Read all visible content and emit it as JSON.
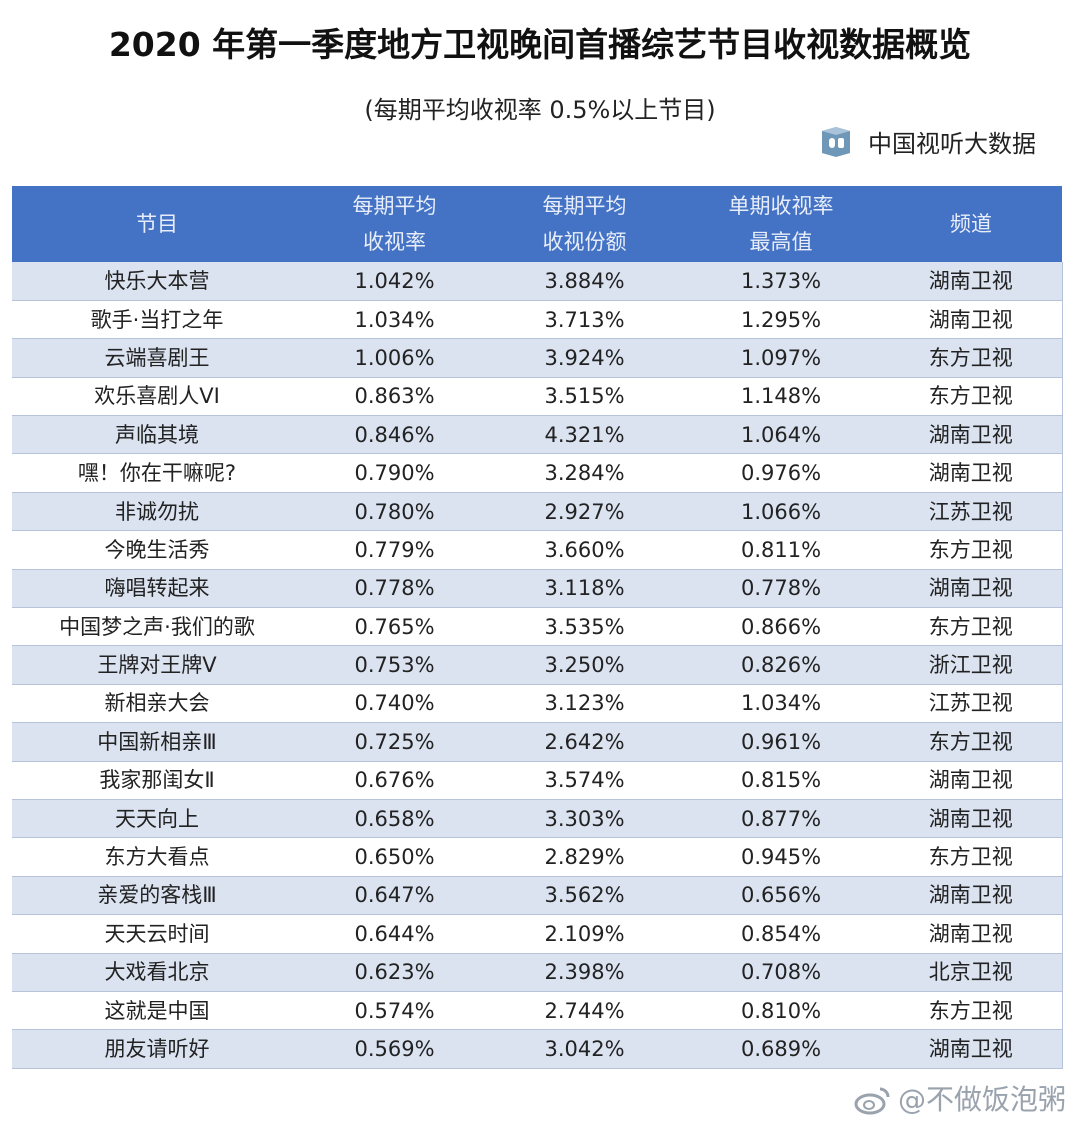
{
  "title": "2020 年第一季度地方卫视晚间首播综艺节目收视数据概览",
  "subtitle": "(每期平均收视率 0.5%以上节目)",
  "brand": "中国视听大数据",
  "watermark": "@不做饭泡粥",
  "colors": {
    "header": "#4472c4",
    "row_alt": "#dbe3f1"
  },
  "headers": [
    [
      "节目",
      ""
    ],
    [
      "每期平均",
      "收视率"
    ],
    [
      "每期平均",
      "收视份额"
    ],
    [
      "单期收视率",
      "最高值"
    ],
    [
      "频道",
      ""
    ]
  ],
  "rows": [
    [
      "快乐大本营",
      "1.042%",
      "3.884%",
      "1.373%",
      "湖南卫视"
    ],
    [
      "歌手·当打之年",
      "1.034%",
      "3.713%",
      "1.295%",
      "湖南卫视"
    ],
    [
      "云端喜剧王",
      "1.006%",
      "3.924%",
      "1.097%",
      "东方卫视"
    ],
    [
      "欢乐喜剧人VI",
      "0.863%",
      "3.515%",
      "1.148%",
      "东方卫视"
    ],
    [
      "声临其境",
      "0.846%",
      "4.321%",
      "1.064%",
      "湖南卫视"
    ],
    [
      "嘿！你在干嘛呢?",
      "0.790%",
      "3.284%",
      "0.976%",
      "湖南卫视"
    ],
    [
      "非诚勿扰",
      "0.780%",
      "2.927%",
      "1.066%",
      "江苏卫视"
    ],
    [
      "今晚生活秀",
      "0.779%",
      "3.660%",
      "0.811%",
      "东方卫视"
    ],
    [
      "嗨唱转起来",
      "0.778%",
      "3.118%",
      "0.778%",
      "湖南卫视"
    ],
    [
      "中国梦之声·我们的歌",
      "0.765%",
      "3.535%",
      "0.866%",
      "东方卫视"
    ],
    [
      "王牌对王牌V",
      "0.753%",
      "3.250%",
      "0.826%",
      "浙江卫视"
    ],
    [
      "新相亲大会",
      "0.740%",
      "3.123%",
      "1.034%",
      "江苏卫视"
    ],
    [
      "中国新相亲Ⅲ",
      "0.725%",
      "2.642%",
      "0.961%",
      "东方卫视"
    ],
    [
      "我家那闺女Ⅱ",
      "0.676%",
      "3.574%",
      "0.815%",
      "湖南卫视"
    ],
    [
      "天天向上",
      "0.658%",
      "3.303%",
      "0.877%",
      "湖南卫视"
    ],
    [
      "东方大看点",
      "0.650%",
      "2.829%",
      "0.945%",
      "东方卫视"
    ],
    [
      "亲爱的客栈Ⅲ",
      "0.647%",
      "3.562%",
      "0.656%",
      "湖南卫视"
    ],
    [
      "天天云时间",
      "0.644%",
      "2.109%",
      "0.854%",
      "湖南卫视"
    ],
    [
      "大戏看北京",
      "0.623%",
      "2.398%",
      "0.708%",
      "北京卫视"
    ],
    [
      "这就是中国",
      "0.574%",
      "2.744%",
      "0.810%",
      "东方卫视"
    ],
    [
      "朋友请听好",
      "0.569%",
      "3.042%",
      "0.689%",
      "湖南卫视"
    ]
  ]
}
